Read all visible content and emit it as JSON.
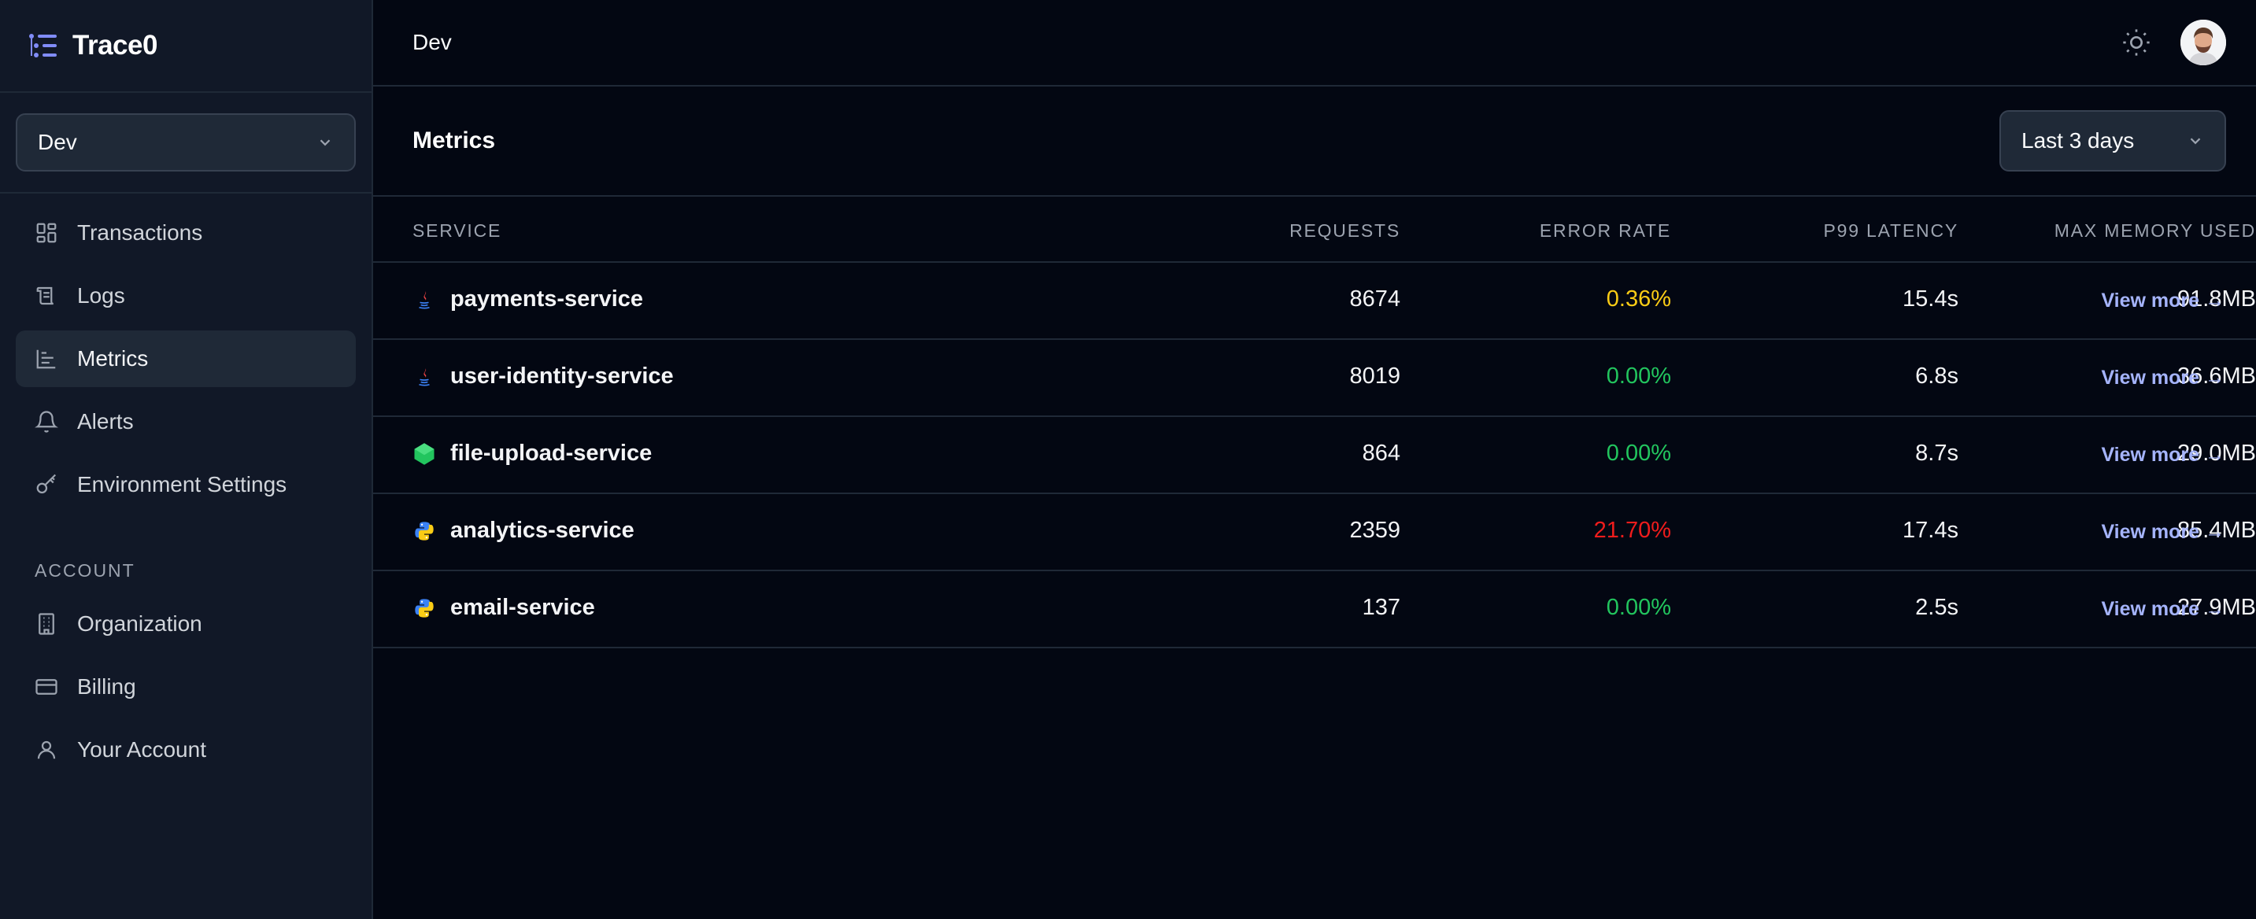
{
  "brand": {
    "name": "Trace0"
  },
  "sidebar": {
    "environment": "Dev",
    "items": [
      {
        "label": "Transactions",
        "icon": "grid-icon"
      },
      {
        "label": "Logs",
        "icon": "scroll-icon"
      },
      {
        "label": "Metrics",
        "icon": "bar-chart-icon",
        "active": true
      },
      {
        "label": "Alerts",
        "icon": "bell-icon"
      },
      {
        "label": "Environment Settings",
        "icon": "key-icon"
      }
    ],
    "account_heading": "ACCOUNT",
    "account_items": [
      {
        "label": "Organization",
        "icon": "building-icon"
      },
      {
        "label": "Billing",
        "icon": "credit-card-icon"
      },
      {
        "label": "Your Account",
        "icon": "user-icon"
      }
    ]
  },
  "topbar": {
    "title": "Dev"
  },
  "metrics": {
    "title": "Metrics",
    "range": "Last 3 days",
    "columns": {
      "service": "SERVICE",
      "requests": "REQUESTS",
      "error_rate": "ERROR RATE",
      "p99": "P99 LATENCY",
      "memory": "MAX MEMORY USED"
    },
    "link_label": "View more →",
    "rows": [
      {
        "service": "payments-service",
        "lang": "java-icon",
        "requests": "8674",
        "error_rate": "0.36%",
        "error_color": "#facc15",
        "p99": "15.4s",
        "memory": "91.8MB"
      },
      {
        "service": "user-identity-service",
        "lang": "java-icon",
        "requests": "8019",
        "error_rate": "0.00%",
        "error_color": "#22c55e",
        "p99": "6.8s",
        "memory": "36.6MB"
      },
      {
        "service": "file-upload-service",
        "lang": "nodejs-icon",
        "requests": "864",
        "error_rate": "0.00%",
        "error_color": "#22c55e",
        "p99": "8.7s",
        "memory": "29.0MB"
      },
      {
        "service": "analytics-service",
        "lang": "python-icon",
        "requests": "2359",
        "error_rate": "21.70%",
        "error_color": "#ef1c1c",
        "p99": "17.4s",
        "memory": "85.4MB"
      },
      {
        "service": "email-service",
        "lang": "python-icon",
        "requests": "137",
        "error_rate": "0.00%",
        "error_color": "#22c55e",
        "p99": "2.5s",
        "memory": "27.9MB"
      }
    ]
  }
}
